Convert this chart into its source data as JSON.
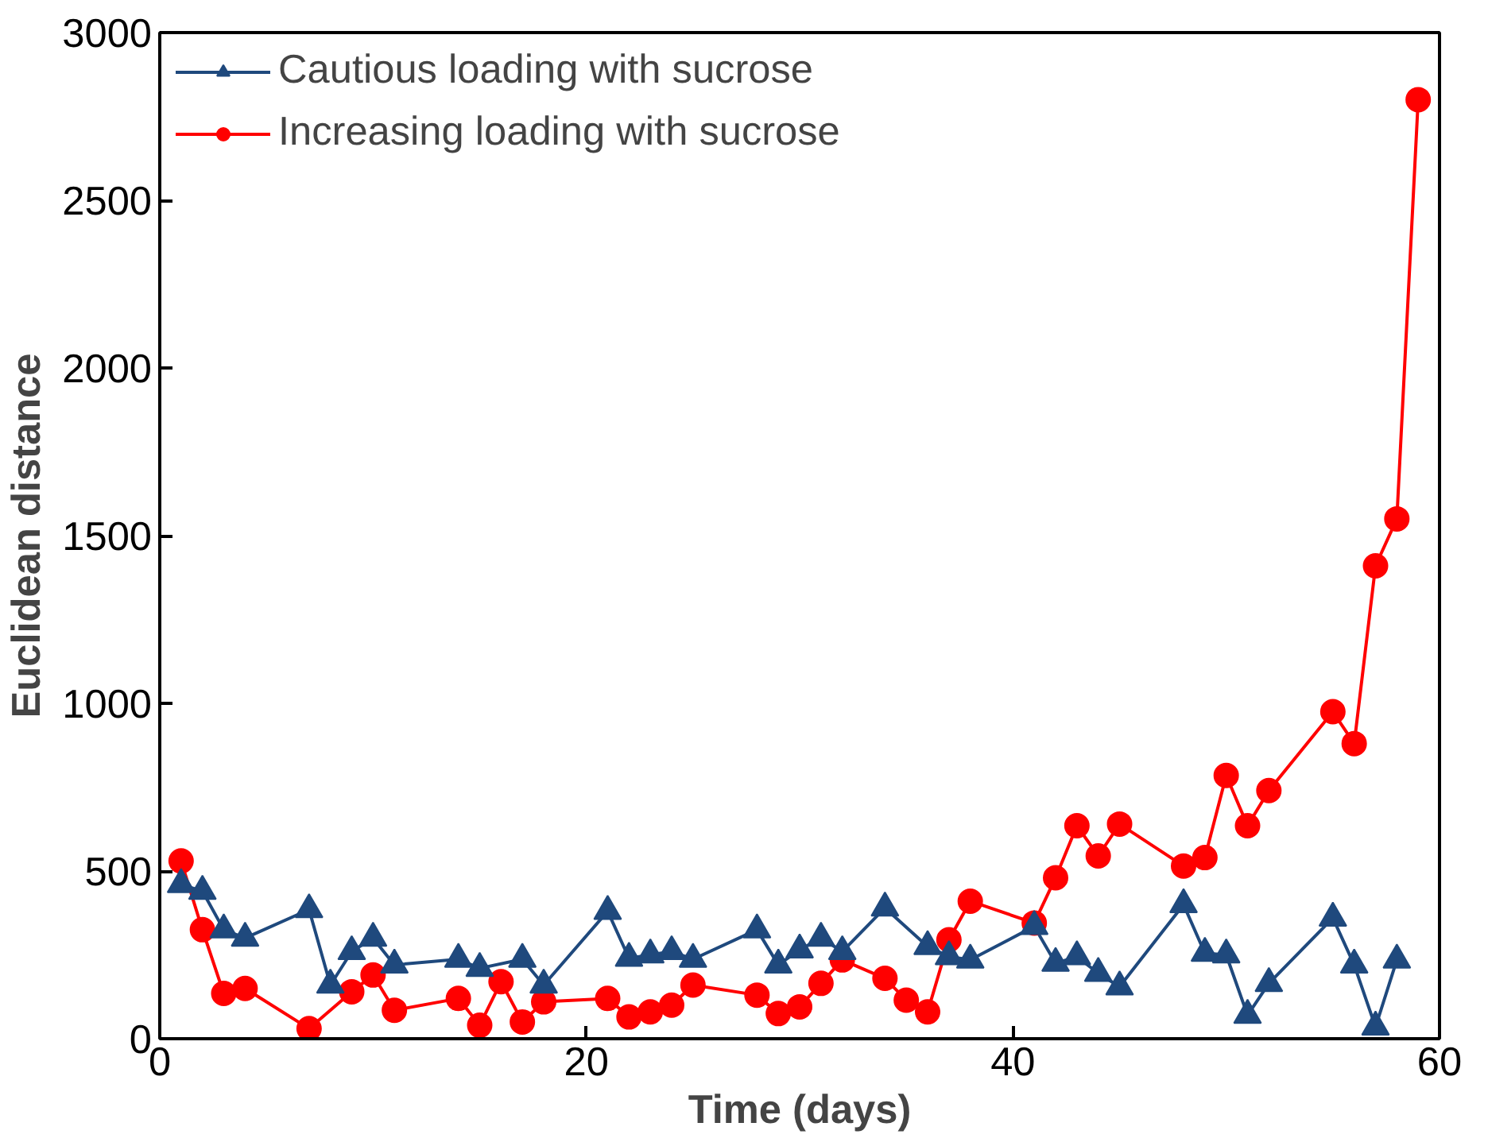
{
  "chart_data": {
    "type": "line",
    "xlabel": "Time (days)",
    "ylabel": "Euclidean distance",
    "xlim": [
      0,
      60
    ],
    "xticks": [
      0,
      20,
      40,
      60
    ],
    "ylim": [
      0,
      3000
    ],
    "yticks": [
      0,
      500,
      1000,
      1500,
      2000,
      2500,
      3000
    ],
    "grid": false,
    "legend": "top left",
    "series": [
      {
        "name": "Cautious loading with sucrose",
        "color": "#1f497d",
        "marker": "triangle",
        "x": [
          1,
          2,
          3,
          4,
          7,
          8,
          9,
          10,
          11,
          14,
          15,
          17,
          18,
          21,
          22,
          23,
          24,
          25,
          28,
          29,
          30,
          31,
          32,
          34,
          36,
          37,
          38,
          41,
          42,
          43,
          44,
          45,
          48,
          49,
          50,
          51,
          52,
          55,
          56,
          57,
          58
        ],
        "values": [
          460,
          440,
          325,
          300,
          385,
          160,
          260,
          300,
          220,
          237,
          210,
          237,
          160,
          380,
          240,
          250,
          260,
          237,
          325,
          220,
          265,
          300,
          260,
          390,
          275,
          245,
          235,
          335,
          225,
          245,
          195,
          155,
          400,
          255,
          250,
          70,
          165,
          360,
          220,
          35,
          235
        ]
      },
      {
        "name": "Increasing loading with sucrose",
        "color": "#ff0000",
        "marker": "circle",
        "x": [
          1,
          2,
          3,
          4,
          7,
          9,
          10,
          11,
          14,
          15,
          16,
          17,
          18,
          21,
          22,
          23,
          24,
          25,
          28,
          29,
          30,
          31,
          32,
          34,
          35,
          36,
          37,
          38,
          41,
          42,
          43,
          44,
          45,
          48,
          49,
          50,
          51,
          52,
          55,
          56,
          57,
          58,
          59
        ],
        "values": [
          530,
          325,
          135,
          150,
          30,
          140,
          190,
          85,
          120,
          40,
          170,
          50,
          110,
          120,
          65,
          80,
          100,
          160,
          130,
          75,
          95,
          165,
          235,
          180,
          115,
          80,
          295,
          410,
          345,
          480,
          635,
          545,
          640,
          515,
          540,
          785,
          635,
          740,
          975,
          880,
          1410,
          1550,
          2800
        ]
      }
    ]
  }
}
